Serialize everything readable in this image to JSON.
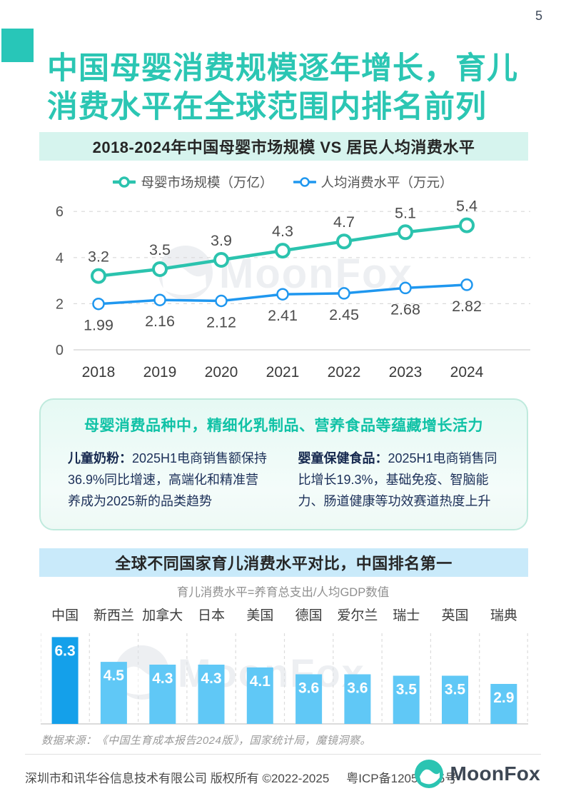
{
  "page_number": "5",
  "title": {
    "line1": "中国母婴消费规模逐年增长，育儿",
    "line2": "消费水平在全球范围内排名前列"
  },
  "watermark": "MoonFox",
  "chart_data": [
    {
      "type": "line",
      "title": "2018-2024年中国母婴市场规模 VS 居民人均消费水平",
      "categories": [
        "2018",
        "2019",
        "2020",
        "2021",
        "2022",
        "2023",
        "2024"
      ],
      "series": [
        {
          "name": "母婴市场规模（万亿）",
          "color": "#2bc3ae",
          "values": [
            3.2,
            3.5,
            3.9,
            4.3,
            4.7,
            5.1,
            5.4
          ]
        },
        {
          "name": "人均消费水平（万元）",
          "color": "#1f97ef",
          "values": [
            1.99,
            2.16,
            2.12,
            2.41,
            2.45,
            2.68,
            2.82
          ]
        }
      ],
      "yticks": [
        0,
        2,
        4,
        6
      ],
      "ylim": [
        0,
        6.6
      ],
      "grid": "dashed-horizontal",
      "legend_position": "top"
    },
    {
      "type": "bar",
      "title": "全球不同国家育儿消费水平对比，中国排名第一",
      "subtitle": "育儿消费水平=养育总支出/人均GDP数值",
      "categories": [
        "中国",
        "新西兰",
        "加拿大",
        "日本",
        "美国",
        "德国",
        "爱尔兰",
        "瑞士",
        "英国",
        "瑞典"
      ],
      "values": [
        6.3,
        4.5,
        4.3,
        4.3,
        4.1,
        3.6,
        3.6,
        3.5,
        3.5,
        2.9
      ],
      "highlight_index": 0,
      "highlight_color": "#14a0ea",
      "bar_color": "#60c8f6",
      "ylim": [
        0,
        6.7
      ],
      "grid": "dashed-vertical"
    }
  ],
  "insight": {
    "title": "母婴消费品种中，精细化乳制品、营养食品等蕴藏增长活力",
    "items": [
      {
        "lead": "儿童奶粉：",
        "text": "2025H1电商销售额保持36.9%同比增速，高端化和精准营养成为2025新的品类趋势"
      },
      {
        "lead": "婴童保健食品：",
        "text": "2025H1电商销售同比增长19.3%，基础免疫、智脑能力、肠道健康等功效赛道热度上升"
      }
    ]
  },
  "source_note": "数据来源：《中国生育成本报告2024版》，国家统计局，魔镜洞察。",
  "footer": {
    "copyright": "深圳市和讯华谷信息技术有限公司 版权所有 ©2022-2025",
    "icp": "粤ICP备12056275号",
    "logo_text": "MoonFox"
  },
  "colors": {
    "accent_teal": "#2bc6b3",
    "banner_mint": "#d6f4ee",
    "banner_blue": "#c9eafa",
    "body_navy": "#1c3059",
    "watermark_gray": "#dfe3e8"
  }
}
